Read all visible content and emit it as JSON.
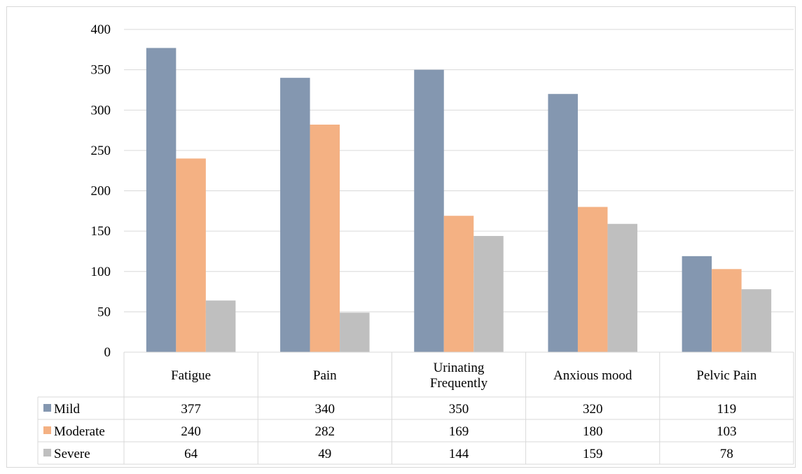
{
  "chart_data": {
    "type": "bar",
    "categories": [
      "Fatigue",
      "Pain",
      "Urinating Frequently",
      "Anxious mood",
      "Pelvic Pain"
    ],
    "category_lines": [
      [
        "Fatigue"
      ],
      [
        "Pain"
      ],
      [
        "Urinating",
        "Frequently"
      ],
      [
        "Anxious mood"
      ],
      [
        "Pelvic Pain"
      ]
    ],
    "series": [
      {
        "name": "Mild",
        "color": "#8497b0",
        "values": [
          377,
          340,
          350,
          320,
          119
        ]
      },
      {
        "name": "Moderate",
        "color": "#f4b183",
        "values": [
          240,
          282,
          169,
          180,
          103
        ]
      },
      {
        "name": "Severe",
        "color": "#bfbfbf",
        "values": [
          64,
          49,
          144,
          159,
          78
        ]
      }
    ],
    "ylim": [
      0,
      400
    ],
    "yticks": [
      0,
      50,
      100,
      150,
      200,
      250,
      300,
      350,
      400
    ],
    "grid": true,
    "legend": "data-table",
    "title": "",
    "xlabel": "",
    "ylabel": ""
  }
}
